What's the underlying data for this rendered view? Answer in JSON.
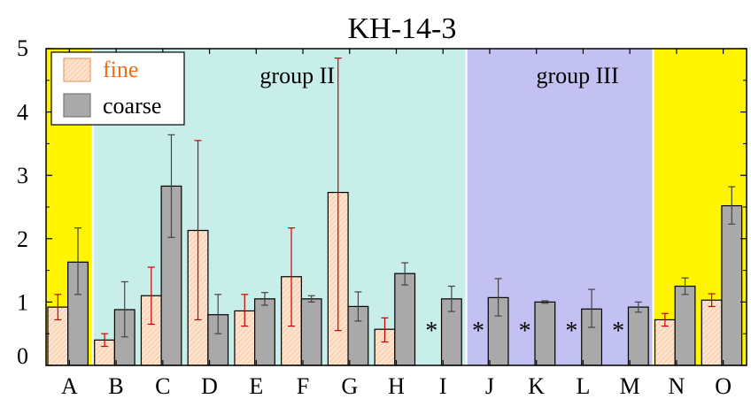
{
  "chart_data": {
    "type": "bar",
    "title": "KH-14-3",
    "xlabel": "",
    "ylabel": "",
    "ylim": [
      0,
      5
    ],
    "yticks": [
      "0",
      "1",
      "2",
      "3",
      "4",
      "5"
    ],
    "grid": false,
    "legend_position": "top-left",
    "categories": [
      "A",
      "B",
      "C",
      "D",
      "E",
      "F",
      "G",
      "H",
      "I",
      "J",
      "K",
      "L",
      "M",
      "N",
      "O"
    ],
    "series": [
      {
        "name": "fine",
        "values": [
          0.92,
          0.4,
          1.1,
          2.13,
          0.86,
          1.4,
          2.73,
          0.57,
          null,
          null,
          null,
          null,
          null,
          0.72,
          1.03
        ],
        "error_low": [
          0.72,
          0.3,
          0.65,
          0.72,
          0.62,
          0.62,
          0.55,
          0.37,
          null,
          null,
          null,
          null,
          null,
          0.62,
          0.93
        ],
        "error_high": [
          1.12,
          0.5,
          1.55,
          3.55,
          1.12,
          2.17,
          4.85,
          0.75,
          null,
          null,
          null,
          null,
          null,
          0.82,
          1.13
        ],
        "fill_color": "#fde2cc",
        "error_color": "#cc0000"
      },
      {
        "name": "coarse",
        "values": [
          1.63,
          0.88,
          2.83,
          0.8,
          1.05,
          1.05,
          0.93,
          1.45,
          1.05,
          1.07,
          1.0,
          0.89,
          0.92,
          1.25,
          2.52
        ],
        "error_low": [
          1.12,
          0.45,
          2.02,
          0.5,
          0.95,
          1.0,
          0.7,
          1.27,
          0.85,
          0.78,
          0.98,
          0.6,
          0.84,
          1.12,
          2.23
        ],
        "error_high": [
          2.17,
          1.32,
          3.64,
          1.12,
          1.15,
          1.1,
          1.16,
          1.62,
          1.25,
          1.37,
          1.02,
          1.2,
          1.0,
          1.38,
          2.82
        ],
        "fill_color": "#a9a9a9",
        "error_color": "#444444"
      }
    ],
    "missing_fine_marker": "*",
    "missing_fine_categories": [
      "I",
      "J",
      "K",
      "L",
      "M"
    ],
    "regions": [
      {
        "from": "A",
        "to": "A",
        "color": "#fff500",
        "label": ""
      },
      {
        "from": "B",
        "to": "I",
        "color": "#c8eeea",
        "label": "group II"
      },
      {
        "from": "J",
        "to": "M",
        "color": "#c3c1f2",
        "label": "group III"
      },
      {
        "from": "N",
        "to": "O",
        "color": "#fff500",
        "label": ""
      }
    ]
  }
}
